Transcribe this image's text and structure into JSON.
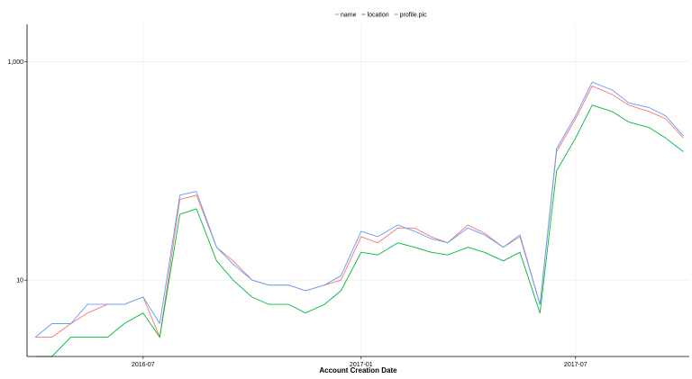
{
  "chart_data": {
    "type": "line",
    "title": "",
    "xlabel": "Account Creation Date",
    "ylabel": "",
    "y_scale": "log10",
    "ylim": [
      2,
      2200
    ],
    "xlim": [
      "2016-03-25",
      "2017-10-05"
    ],
    "x_ticks": [
      {
        "date": "2016-07-01",
        "label": "2016-07"
      },
      {
        "date": "2017-01-01",
        "label": "2017-01"
      },
      {
        "date": "2017-07-01",
        "label": "2017-07"
      }
    ],
    "y_ticks": [
      {
        "value": 10,
        "label": "10"
      },
      {
        "value": 1000,
        "label": "1,000"
      }
    ],
    "grid": true,
    "legend_position": "top",
    "x": [
      "2016-04-01",
      "2016-04-15",
      "2016-05-01",
      "2016-05-15",
      "2016-06-01",
      "2016-06-15",
      "2016-07-01",
      "2016-07-15",
      "2016-08-01",
      "2016-08-15",
      "2016-09-01",
      "2016-09-15",
      "2016-10-01",
      "2016-10-15",
      "2016-11-01",
      "2016-11-15",
      "2016-12-01",
      "2016-12-15",
      "2017-01-01",
      "2017-01-15",
      "2017-02-01",
      "2017-02-15",
      "2017-03-01",
      "2017-03-15",
      "2017-04-01",
      "2017-04-15",
      "2017-05-01",
      "2017-05-15",
      "2017-06-01",
      "2017-06-15",
      "2017-07-01",
      "2017-07-15",
      "2017-08-01",
      "2017-08-15",
      "2017-09-01",
      "2017-09-15",
      "2017-09-30"
    ],
    "series": [
      {
        "name": "name",
        "color": "#F8766D",
        "values": [
          3,
          3,
          4,
          5,
          6,
          6,
          7,
          3,
          55,
          60,
          20,
          15,
          10,
          9,
          9,
          8,
          9,
          10,
          25,
          22,
          30,
          30,
          25,
          22,
          32,
          27,
          20,
          25,
          6,
          150,
          300,
          600,
          500,
          400,
          350,
          300,
          200
        ]
      },
      {
        "name": "location",
        "color": "#00BA38",
        "values": [
          2,
          2,
          3,
          3,
          3,
          4,
          5,
          3,
          40,
          45,
          15,
          10,
          7,
          6,
          6,
          5,
          6,
          8,
          18,
          17,
          22,
          20,
          18,
          17,
          20,
          18,
          15,
          18,
          5,
          100,
          200,
          400,
          350,
          280,
          250,
          200,
          150
        ]
      },
      {
        "name": "profile.pic",
        "color": "#619CFF",
        "values": [
          3,
          4,
          4,
          6,
          6,
          6,
          7,
          4,
          60,
          65,
          20,
          14,
          10,
          9,
          9,
          8,
          9,
          11,
          28,
          25,
          32,
          28,
          24,
          22,
          30,
          26,
          20,
          26,
          6,
          160,
          320,
          650,
          550,
          420,
          380,
          320,
          210
        ]
      }
    ]
  }
}
